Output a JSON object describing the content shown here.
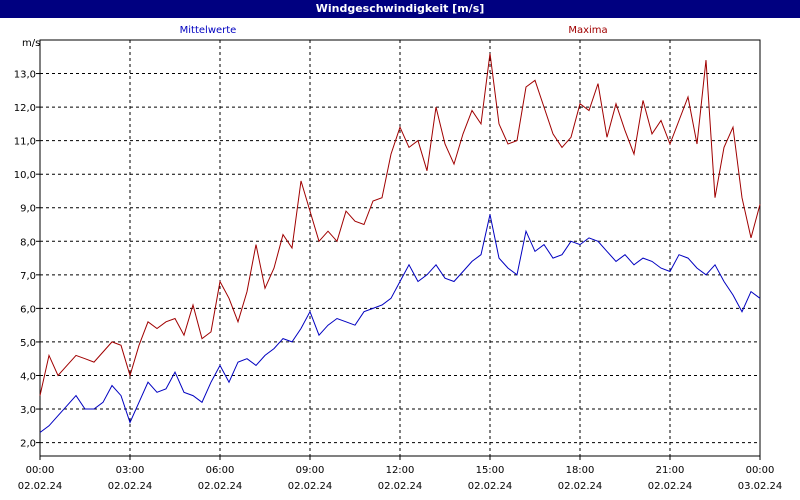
{
  "window": {
    "title": "Windgeschwindigkeit [m/s]"
  },
  "chart_data": {
    "type": "line",
    "title": "Windgeschwindigkeit [m/s]",
    "ylabel": "m/s",
    "xlabel": "",
    "ylim": [
      1.6,
      14.0
    ],
    "y_ticks": [
      "2,0",
      "3,0",
      "4,0",
      "5,0",
      "6,0",
      "7,0",
      "8,0",
      "9,0",
      "10,0",
      "11,0",
      "12,0",
      "13,0"
    ],
    "y_tick_values": [
      2,
      3,
      4,
      5,
      6,
      7,
      8,
      9,
      10,
      11,
      12,
      13
    ],
    "x_range_hours": [
      0,
      24
    ],
    "x_ticks": [
      {
        "hour": 0,
        "time": "00:00",
        "date": "02.02.24"
      },
      {
        "hour": 3,
        "time": "03:00",
        "date": "02.02.24"
      },
      {
        "hour": 6,
        "time": "06:00",
        "date": "02.02.24"
      },
      {
        "hour": 9,
        "time": "09:00",
        "date": "02.02.24"
      },
      {
        "hour": 12,
        "time": "12:00",
        "date": "02.02.24"
      },
      {
        "hour": 15,
        "time": "15:00",
        "date": "02.02.24"
      },
      {
        "hour": 18,
        "time": "18:00",
        "date": "02.02.24"
      },
      {
        "hour": 21,
        "time": "21:00",
        "date": "02.02.24"
      },
      {
        "hour": 24,
        "time": "00:00",
        "date": "03.02.24"
      }
    ],
    "grid": true,
    "legend": [
      "Mittelwerte",
      "Maxima"
    ],
    "series": [
      {
        "name": "Mittelwerte",
        "color": "#0000c0",
        "x": [
          0,
          0.3,
          0.6,
          0.9,
          1.2,
          1.5,
          1.8,
          2.1,
          2.4,
          2.7,
          3.0,
          3.3,
          3.6,
          3.9,
          4.2,
          4.5,
          4.8,
          5.1,
          5.4,
          5.7,
          6.0,
          6.3,
          6.6,
          6.9,
          7.2,
          7.5,
          7.8,
          8.1,
          8.4,
          8.7,
          9.0,
          9.3,
          9.6,
          9.9,
          10.2,
          10.5,
          10.8,
          11.1,
          11.4,
          11.7,
          12.0,
          12.3,
          12.6,
          12.9,
          13.2,
          13.5,
          13.8,
          14.1,
          14.4,
          14.7,
          15.0,
          15.3,
          15.6,
          15.9,
          16.2,
          16.5,
          16.8,
          17.1,
          17.4,
          17.7,
          18.0,
          18.3,
          18.6,
          18.9,
          19.2,
          19.5,
          19.8,
          20.1,
          20.4,
          20.7,
          21.0,
          21.3,
          21.6,
          21.9,
          22.2,
          22.5,
          22.8,
          23.1,
          23.4,
          23.7,
          24.0
        ],
        "values": [
          2.3,
          2.5,
          2.8,
          3.1,
          3.4,
          3.0,
          3.0,
          3.2,
          3.7,
          3.4,
          2.6,
          3.2,
          3.8,
          3.5,
          3.6,
          4.1,
          3.5,
          3.4,
          3.2,
          3.8,
          4.3,
          3.8,
          4.4,
          4.5,
          4.3,
          4.6,
          4.8,
          5.1,
          5.0,
          5.4,
          5.9,
          5.2,
          5.5,
          5.7,
          5.6,
          5.5,
          5.9,
          6.0,
          6.1,
          6.3,
          6.8,
          7.3,
          6.8,
          7.0,
          7.3,
          6.9,
          6.8,
          7.1,
          7.4,
          7.6,
          8.8,
          7.5,
          7.2,
          7.0,
          8.3,
          7.7,
          7.9,
          7.5,
          7.6,
          8.0,
          7.9,
          8.1,
          8.0,
          7.7,
          7.4,
          7.6,
          7.3,
          7.5,
          7.4,
          7.2,
          7.1,
          7.6,
          7.5,
          7.2,
          7.0,
          7.3,
          6.8,
          6.4,
          5.9,
          6.5,
          6.3
        ]
      },
      {
        "name": "Maxima",
        "color": "#a00000",
        "x": [
          0,
          0.3,
          0.6,
          0.9,
          1.2,
          1.5,
          1.8,
          2.1,
          2.4,
          2.7,
          3.0,
          3.3,
          3.6,
          3.9,
          4.2,
          4.5,
          4.8,
          5.1,
          5.4,
          5.7,
          6.0,
          6.3,
          6.6,
          6.9,
          7.2,
          7.5,
          7.8,
          8.1,
          8.4,
          8.7,
          9.0,
          9.3,
          9.6,
          9.9,
          10.2,
          10.5,
          10.8,
          11.1,
          11.4,
          11.7,
          12.0,
          12.3,
          12.6,
          12.9,
          13.2,
          13.5,
          13.8,
          14.1,
          14.4,
          14.7,
          15.0,
          15.3,
          15.6,
          15.9,
          16.2,
          16.5,
          16.8,
          17.1,
          17.4,
          17.7,
          18.0,
          18.3,
          18.6,
          18.9,
          19.2,
          19.5,
          19.8,
          20.1,
          20.4,
          20.7,
          21.0,
          21.3,
          21.6,
          21.9,
          22.2,
          22.5,
          22.8,
          23.1,
          23.4,
          23.7,
          24.0
        ],
        "values": [
          3.4,
          4.6,
          4.0,
          4.3,
          4.6,
          4.5,
          4.4,
          4.7,
          5.0,
          4.9,
          4.0,
          4.9,
          5.6,
          5.4,
          5.6,
          5.7,
          5.2,
          6.1,
          5.1,
          5.3,
          6.8,
          6.3,
          5.6,
          6.5,
          7.9,
          6.6,
          7.2,
          8.2,
          7.8,
          9.8,
          8.9,
          8.0,
          8.3,
          8.0,
          8.9,
          8.6,
          8.5,
          9.2,
          9.3,
          10.6,
          11.4,
          10.8,
          11.0,
          10.1,
          12.0,
          10.9,
          10.3,
          11.2,
          11.9,
          11.5,
          13.6,
          11.5,
          10.9,
          11.0,
          12.6,
          12.8,
          12.0,
          11.2,
          10.8,
          11.1,
          12.1,
          11.9,
          12.7,
          11.1,
          12.1,
          11.3,
          10.6,
          12.2,
          11.2,
          11.6,
          10.9,
          11.6,
          12.3,
          10.9,
          13.4,
          9.3,
          10.8,
          11.4,
          9.3,
          8.1,
          9.1
        ]
      }
    ]
  }
}
